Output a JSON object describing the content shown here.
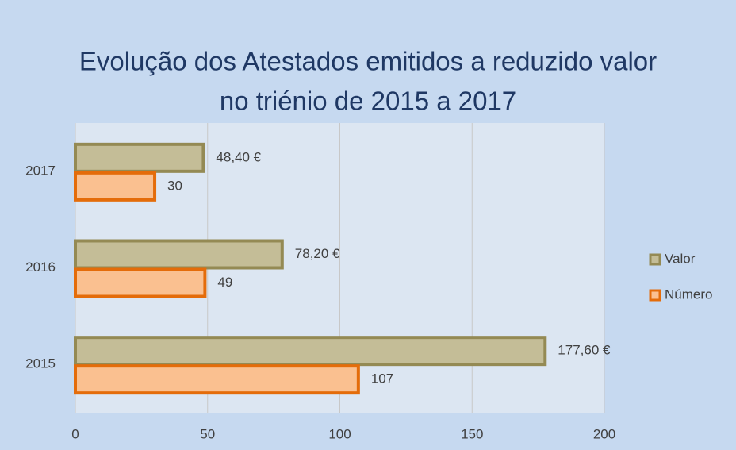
{
  "chart_data": {
    "type": "barh",
    "title": [
      "Evolução dos Atestados emitidos a reduzido valor",
      "no triénio de 2015 a 2017"
    ],
    "categories": [
      "2015",
      "2016",
      "2017"
    ],
    "series": [
      {
        "name": "Valor",
        "color": "#c4bd97",
        "edgecolor": "#948a54",
        "values": [
          177.6,
          78.2,
          48.4
        ],
        "value_labels": [
          "177,60 €",
          "78,20 €",
          "48,40 €"
        ]
      },
      {
        "name": "Número",
        "color": "#fac090",
        "edgecolor": "#e46c0a",
        "values": [
          107,
          49,
          30
        ]
      }
    ],
    "xlim": [
      0,
      200
    ],
    "xticks": [
      0,
      50,
      100,
      150,
      200
    ],
    "grid": true,
    "legend": "right"
  }
}
